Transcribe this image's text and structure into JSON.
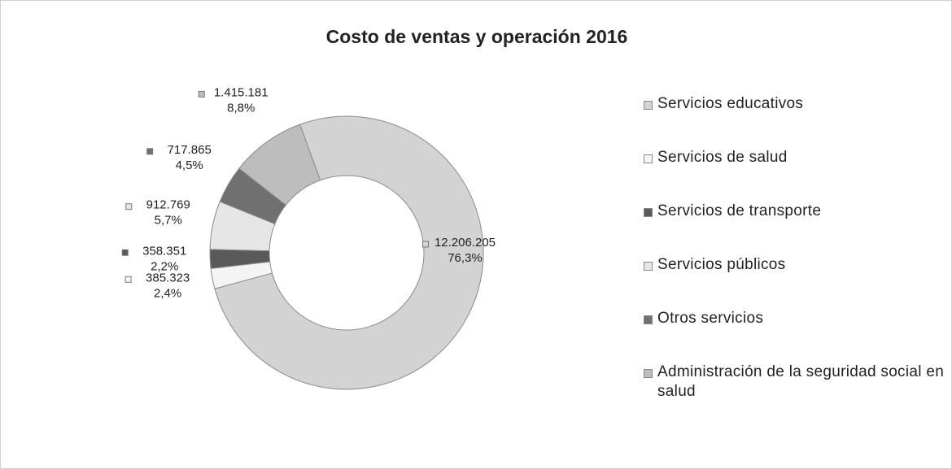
{
  "chart_data": {
    "type": "donut",
    "title": "Costo de ventas y operación 2016",
    "categories": [
      "Servicios educativos",
      "Servicios de salud",
      "Servicios de transporte",
      "Servicios públicos",
      "Otros servicios",
      "Administración de la seguridad social en salud"
    ],
    "values": [
      12206205,
      385323,
      358351,
      912769,
      717865,
      1415181
    ],
    "value_labels": [
      "12.206.205",
      "385.323",
      "358.351",
      "912.769",
      "717.865",
      "1.415.181"
    ],
    "percents": [
      76.3,
      2.4,
      2.2,
      5.7,
      4.5,
      8.8
    ],
    "percent_labels": [
      "76,3%",
      "2,4%",
      "2,2%",
      "5,7%",
      "4,5%",
      "8,8%"
    ],
    "colors": [
      "#d3d3d3",
      "#f4f4f4",
      "#595959",
      "#e6e6e6",
      "#707070",
      "#bdbdbd"
    ],
    "legend": "right"
  }
}
